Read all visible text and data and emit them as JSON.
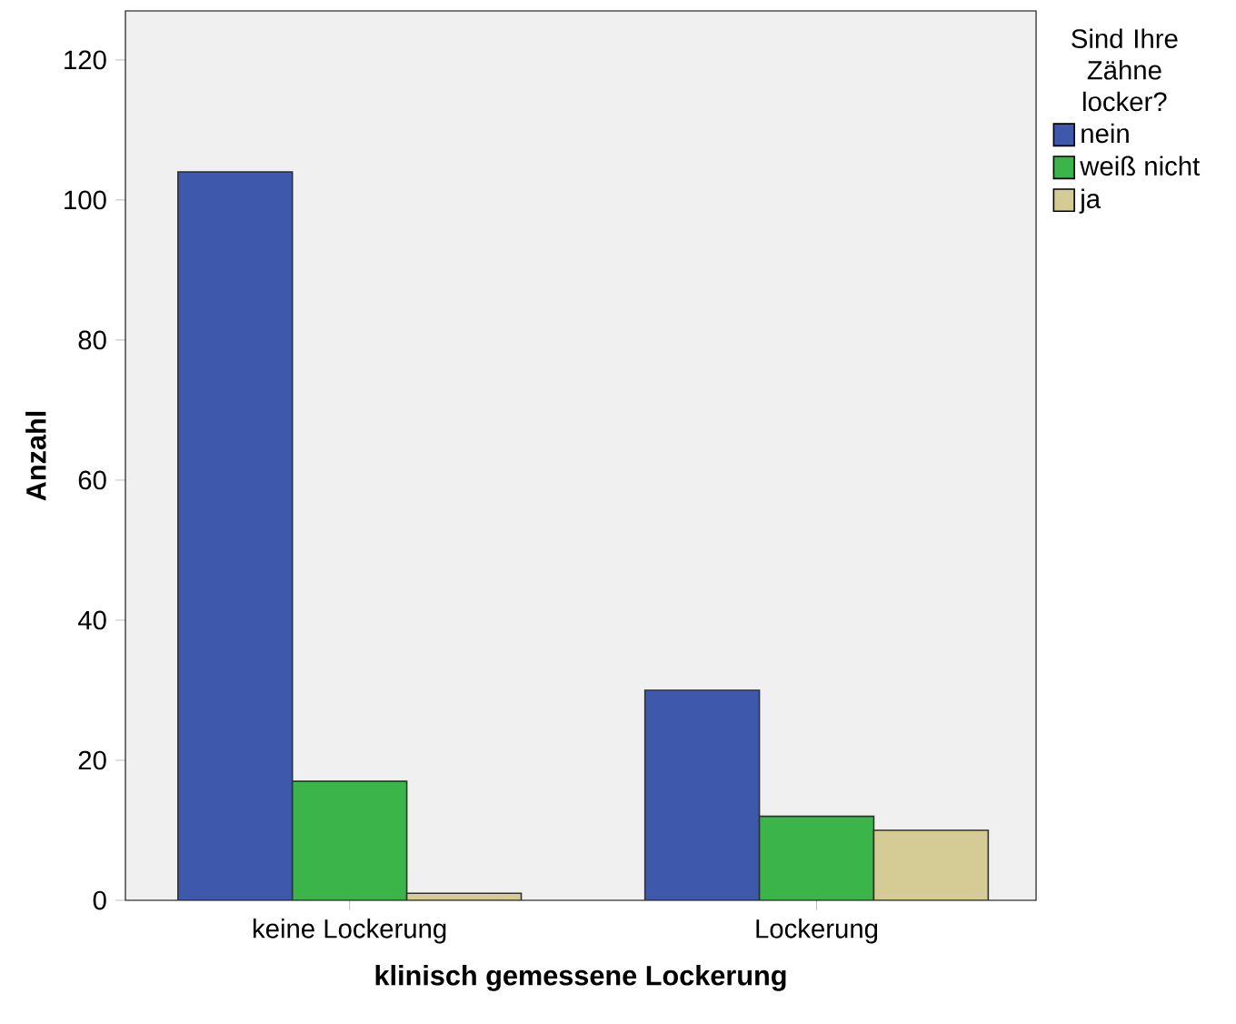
{
  "chart_data": {
    "type": "bar",
    "xlabel": "klinisch gemessene Lockerung",
    "ylabel": "Anzahl",
    "legend_title": "Sind Ihre Zähne locker?",
    "categories": [
      "keine Lockerung",
      "Lockerung"
    ],
    "series": [
      {
        "name": "nein",
        "color": "#3e58ac",
        "values": [
          104,
          30
        ]
      },
      {
        "name": "weiß nicht",
        "color": "#3bb44a",
        "values": [
          17,
          12
        ]
      },
      {
        "name": "ja",
        "color": "#d4cc94",
        "values": [
          1,
          10
        ]
      }
    ],
    "ylim": [
      0,
      127
    ],
    "yticks": [
      0,
      20,
      40,
      60,
      80,
      100,
      120
    ],
    "grid": false,
    "legend": "top right"
  }
}
